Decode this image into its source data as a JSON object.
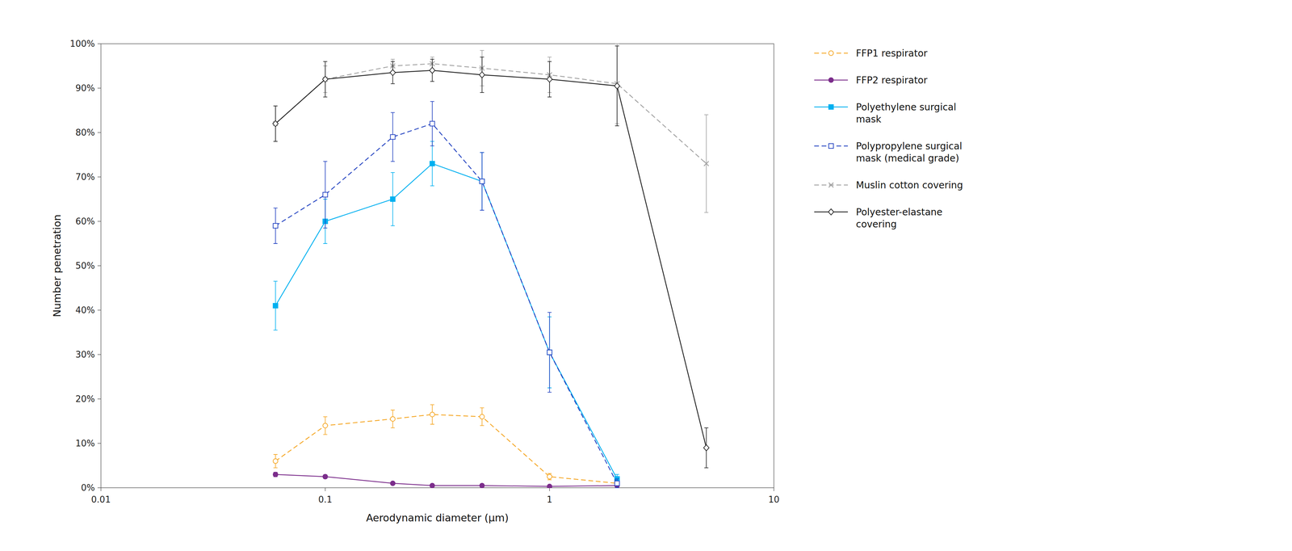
{
  "chart_data": {
    "type": "line",
    "xlabel": "Aerodynamic diameter (μm)",
    "ylabel": "Number penetration",
    "log": "x",
    "grid": false,
    "legend": "right",
    "xlim": [
      0.01,
      10
    ],
    "xticks": [
      0.01,
      0.1,
      1,
      10
    ],
    "ylim": [
      0,
      1.0
    ],
    "yticks": [
      {
        "value": 0.0,
        "label": "0%"
      },
      {
        "value": 0.1,
        "label": "10%"
      },
      {
        "value": 0.2,
        "label": "20%"
      },
      {
        "value": 0.3,
        "label": "30%"
      },
      {
        "value": 0.4,
        "label": "40%"
      },
      {
        "value": 0.5,
        "label": "50%"
      },
      {
        "value": 0.6,
        "label": "60%"
      },
      {
        "value": 0.7,
        "label": "70%"
      },
      {
        "value": 0.8,
        "label": "80%"
      },
      {
        "value": 0.9,
        "label": "90%"
      },
      {
        "value": 1.0,
        "label": "100%"
      }
    ],
    "series": [
      {
        "name": "FFP1 respirator",
        "color": "#F5A623",
        "marker": "circle-open",
        "line_style": "dashed",
        "x": [
          0.06,
          0.1,
          0.2,
          0.3,
          0.5,
          1.0,
          2.0
        ],
        "values": [
          0.06,
          0.14,
          0.155,
          0.165,
          0.16,
          0.025,
          0.01
        ],
        "errors": [
          0.015,
          0.02,
          0.02,
          0.022,
          0.02,
          0.007,
          0.003
        ]
      },
      {
        "name": "FFP2 respirator",
        "color": "#7B2D8B",
        "marker": "circle",
        "line_style": "solid",
        "x": [
          0.06,
          0.1,
          0.2,
          0.3,
          0.5,
          1.0,
          2.0
        ],
        "values": [
          0.03,
          0.025,
          0.01,
          0.005,
          0.005,
          0.003,
          0.005
        ],
        "errors": [
          0.005,
          0.004,
          0.002,
          0.001,
          0.001,
          0.001,
          0.001
        ]
      },
      {
        "name": "Polyethylene surgical\nmask",
        "color": "#00B0F0",
        "marker": "square",
        "line_style": "solid",
        "x": [
          0.06,
          0.1,
          0.2,
          0.3,
          0.5,
          1.0,
          2.0
        ],
        "values": [
          0.41,
          0.6,
          0.65,
          0.73,
          0.69,
          0.305,
          0.02
        ],
        "errors": [
          0.055,
          0.05,
          0.06,
          0.05,
          0.065,
          0.08,
          0.01
        ]
      },
      {
        "name": "Polypropylene surgical\nmask (medical grade)",
        "color": "#2040C0",
        "marker": "square-open",
        "line_style": "dashed",
        "x": [
          0.06,
          0.1,
          0.2,
          0.3,
          0.5,
          1.0,
          2.0
        ],
        "values": [
          0.59,
          0.66,
          0.79,
          0.82,
          0.69,
          0.305,
          0.01
        ],
        "errors": [
          0.04,
          0.075,
          0.055,
          0.05,
          0.065,
          0.09,
          0.01
        ]
      },
      {
        "name": "Muslin cotton covering",
        "color": "#A0A0A0",
        "marker": "x",
        "line_style": "dashed",
        "x": [
          0.06,
          0.1,
          0.2,
          0.3,
          0.5,
          1.0,
          2.0,
          5.0
        ],
        "values": [
          0.82,
          0.92,
          0.95,
          0.955,
          0.945,
          0.93,
          0.91,
          0.73
        ],
        "errors": [
          0.04,
          0.03,
          0.015,
          0.015,
          0.04,
          0.04,
          0.09,
          0.11
        ]
      },
      {
        "name": "Polyester-elastane\ncovering",
        "color": "#202020",
        "marker": "diamond-open",
        "line_style": "solid",
        "x": [
          0.06,
          0.1,
          0.2,
          0.3,
          0.5,
          1.0,
          2.0,
          5.0
        ],
        "values": [
          0.82,
          0.92,
          0.935,
          0.94,
          0.93,
          0.92,
          0.905,
          0.09
        ],
        "errors": [
          0.04,
          0.04,
          0.025,
          0.025,
          0.04,
          0.04,
          0.09,
          0.045
        ]
      }
    ]
  }
}
